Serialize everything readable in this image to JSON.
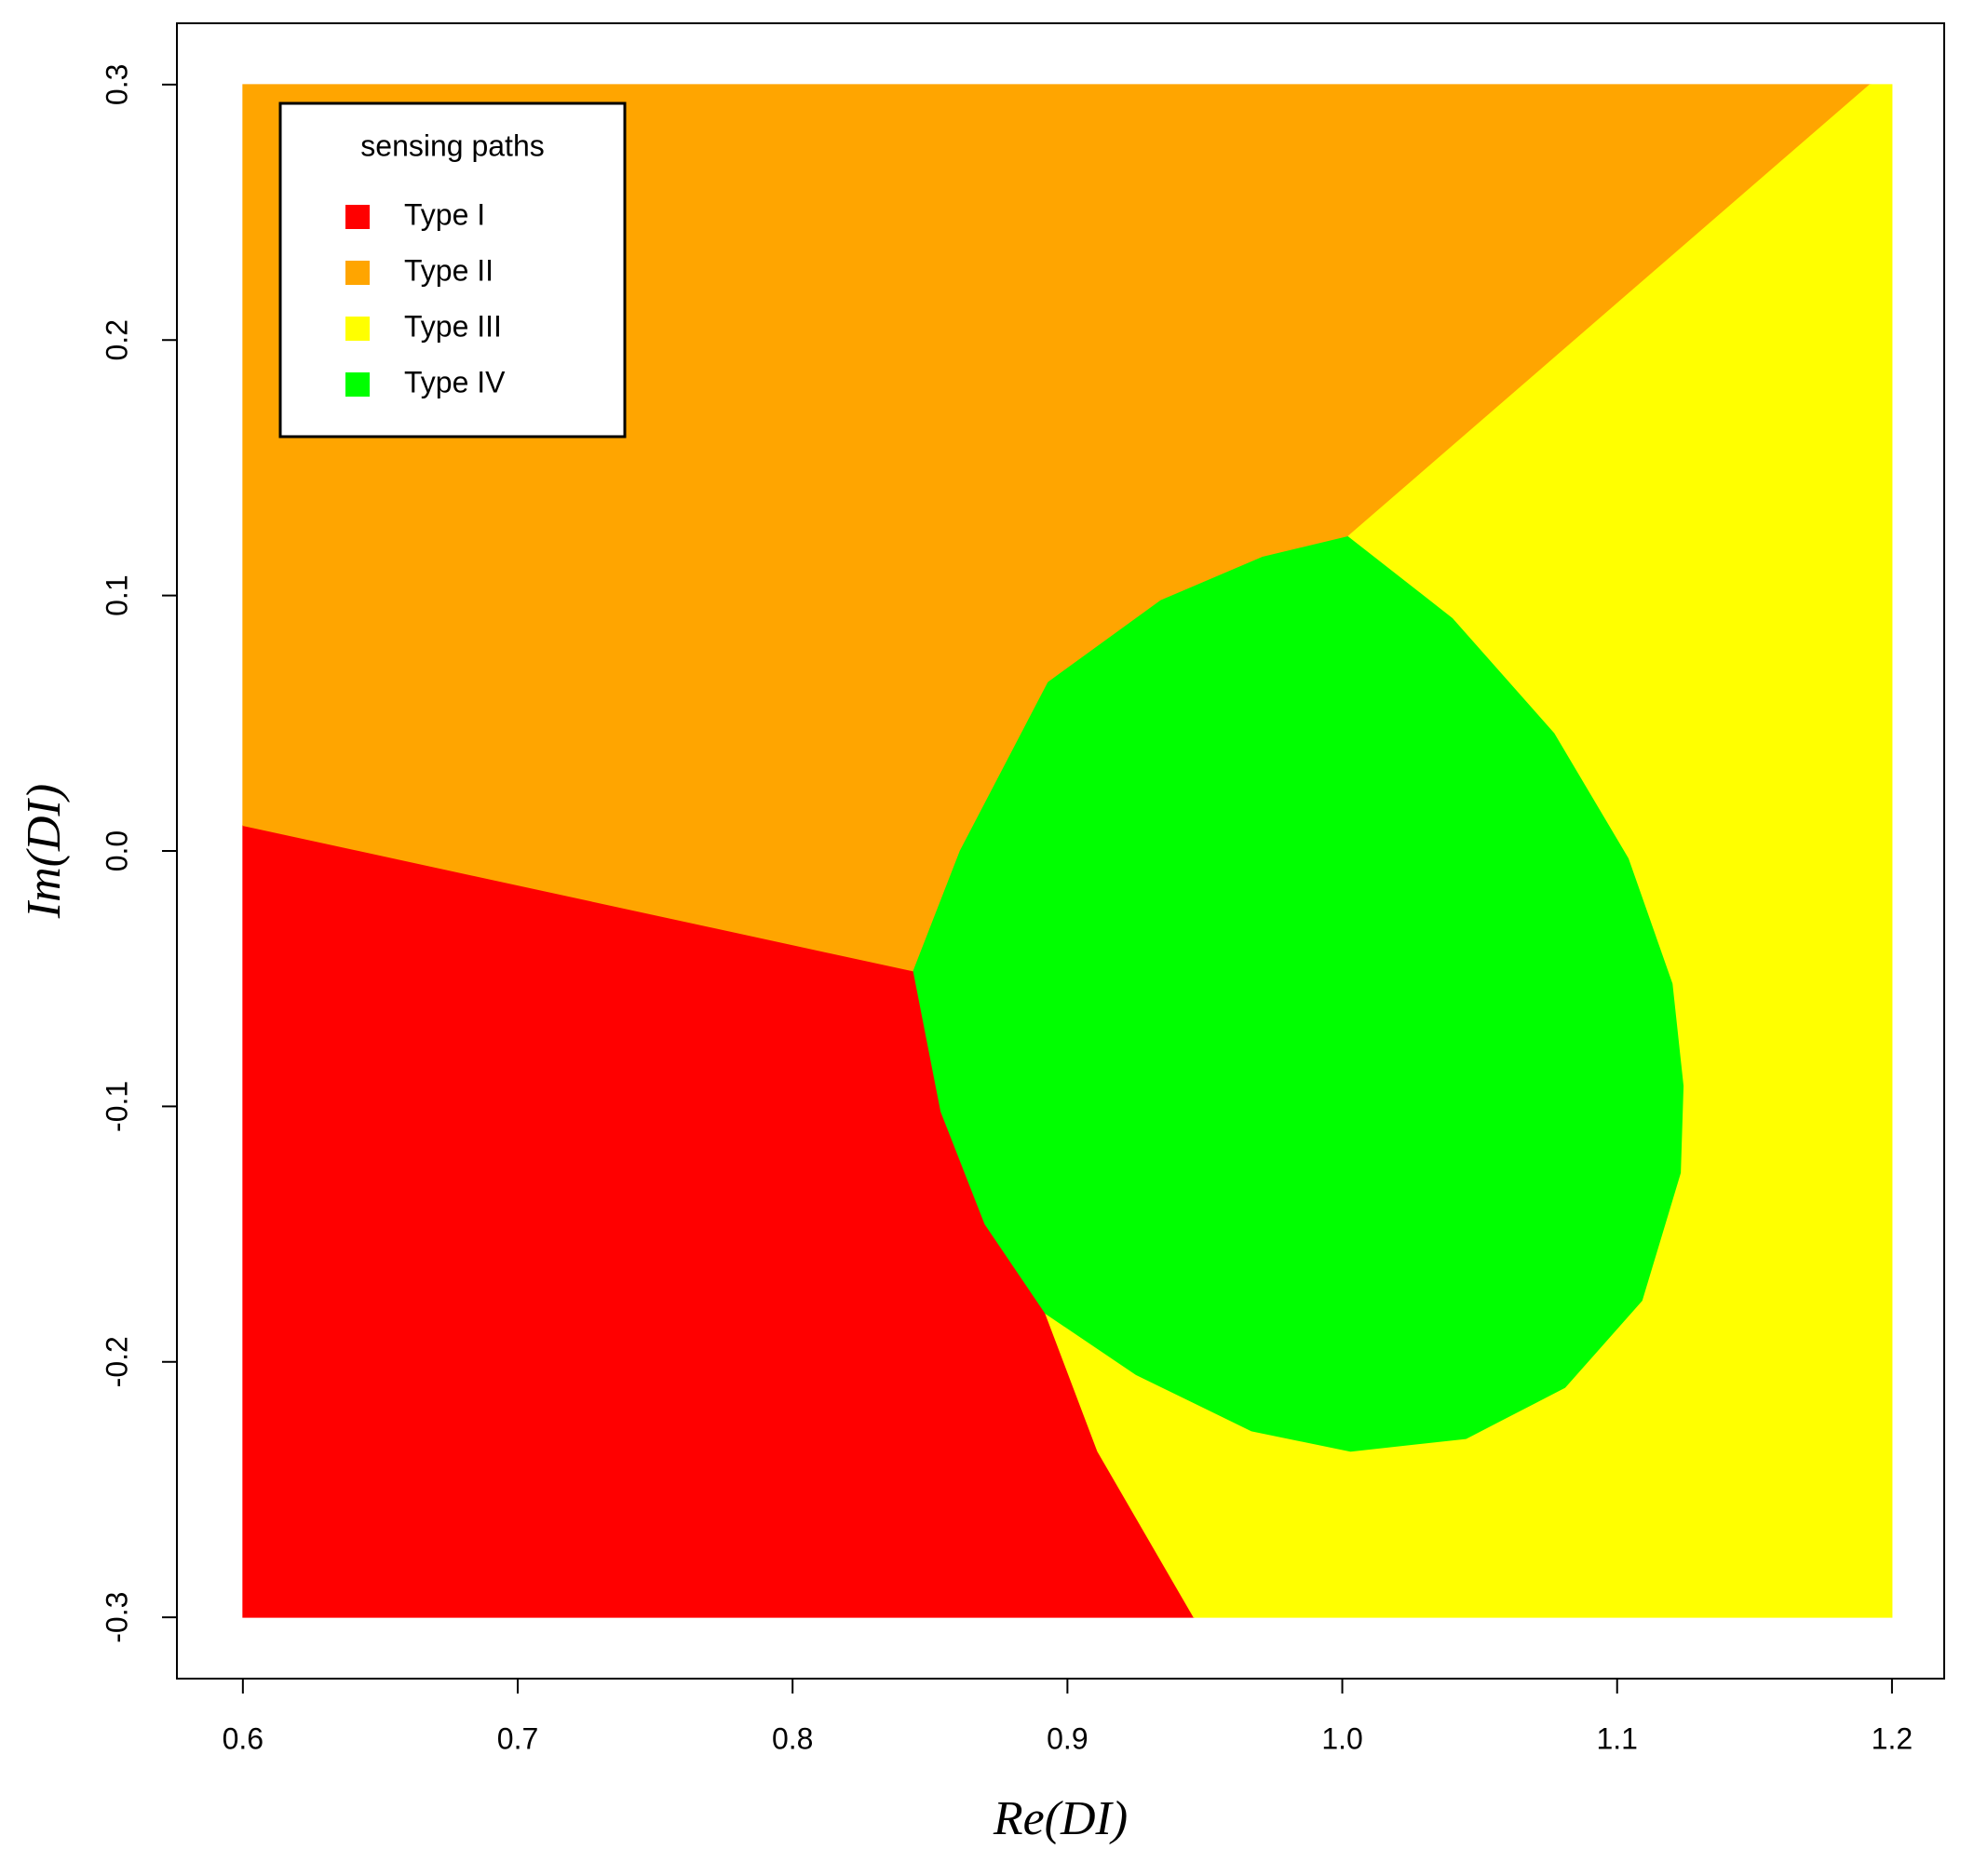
{
  "chart_data": {
    "type": "region",
    "x_label": "Re(DI)",
    "y_label": "Im(DI)",
    "legend_title": "sensing paths",
    "legend_position": "top-left",
    "xlim": [
      0.576,
      1.219
    ],
    "ylim": [
      -0.324,
      0.324
    ],
    "xticks": [
      0.6,
      0.7,
      0.8,
      0.9,
      {
        "value": 1,
        "label": "1.0"
      },
      1.1,
      1.2
    ],
    "yticks": [
      -0.3,
      -0.2,
      -0.1,
      {
        "value": 0,
        "label": "0.0"
      },
      0.1,
      0.2,
      0.3
    ],
    "series": [
      {
        "name": "Type I",
        "color": "#ff0000",
        "x": [
          0.6,
          0.844,
          0.854,
          0.87,
          0.892,
          0.911,
          0.946,
          0.6
        ],
        "y": [
          0.01,
          -0.047,
          -0.102,
          -0.146,
          -0.181,
          -0.235,
          -0.3,
          -0.3
        ]
      },
      {
        "name": "Type II",
        "color": "#ffa500",
        "x": [
          0.6,
          1.192,
          1.002,
          0.971,
          0.934,
          0.893,
          0.861,
          0.844,
          0.6
        ],
        "y": [
          0.3,
          0.3,
          0.123,
          0.115,
          0.098,
          0.066,
          0.0,
          -0.047,
          0.01
        ]
      },
      {
        "name": "Type III",
        "color": "#ffff00",
        "x": [
          1.192,
          1.2,
          1.2,
          0.946,
          0.911,
          0.892,
          0.925,
          0.967,
          1.003,
          1.045,
          1.081,
          1.109,
          1.123,
          1.124,
          1.12,
          1.104,
          1.077,
          1.04,
          1.002
        ],
        "y": [
          0.3,
          0.3,
          -0.3,
          -0.3,
          -0.235,
          -0.181,
          -0.205,
          -0.227,
          -0.235,
          -0.23,
          -0.21,
          -0.176,
          -0.126,
          -0.092,
          -0.052,
          -0.003,
          0.046,
          0.091,
          0.123
        ]
      },
      {
        "name": "Type IV",
        "color": "#00ff00",
        "x": [
          0.844,
          0.861,
          0.893,
          0.934,
          0.971,
          1.002,
          1.04,
          1.077,
          1.104,
          1.12,
          1.124,
          1.123,
          1.109,
          1.081,
          1.045,
          1.003,
          0.967,
          0.925,
          0.892,
          0.87,
          0.854
        ],
        "y": [
          -0.047,
          0.0,
          0.066,
          0.098,
          0.115,
          0.123,
          0.091,
          0.046,
          -0.003,
          -0.052,
          -0.092,
          -0.126,
          -0.176,
          -0.21,
          -0.23,
          -0.235,
          -0.227,
          -0.205,
          -0.181,
          -0.146,
          -0.102
        ]
      }
    ]
  }
}
